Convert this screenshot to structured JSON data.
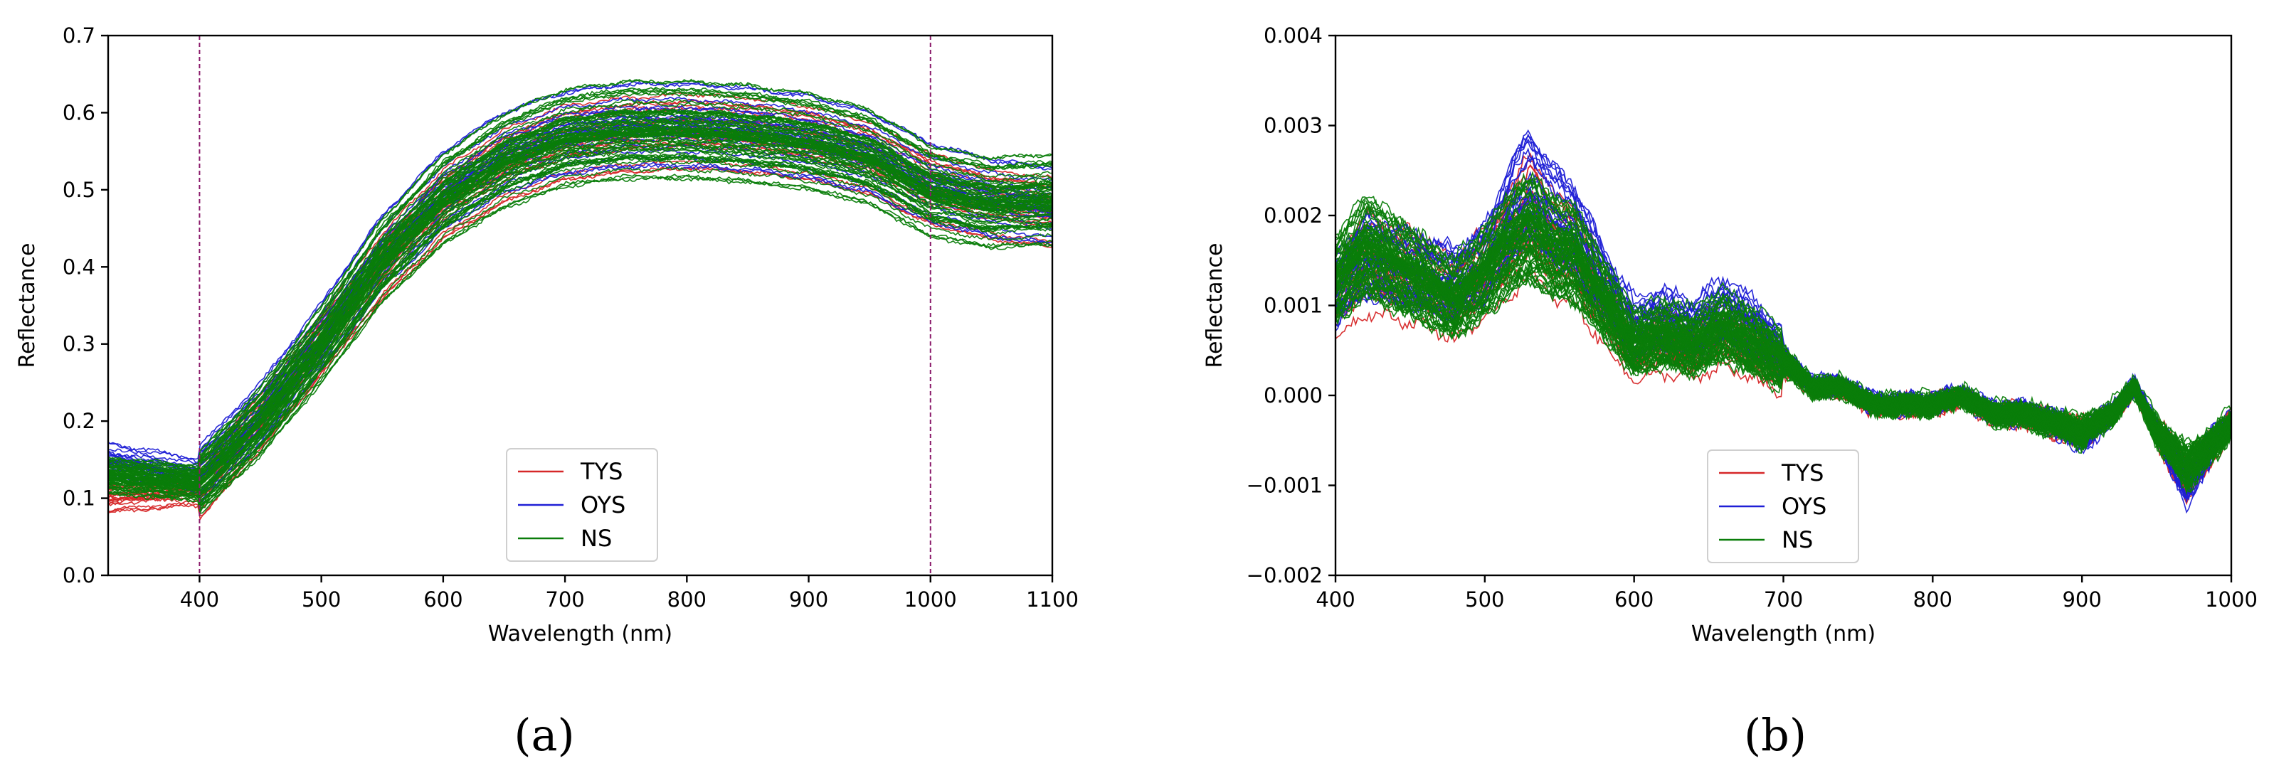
{
  "colors": {
    "TYS": "#d62728",
    "OYS": "#1f1fd6",
    "NS": "#0a7d0a",
    "marker": "#8b1a6b"
  },
  "chart_data": [
    {
      "panel_label": "(a)",
      "type": "line",
      "xlabel": "Wavelength (nm)",
      "ylabel": "Reflectance",
      "xlim": [
        325,
        1100
      ],
      "ylim": [
        0,
        0.7
      ],
      "xticks": [
        "400",
        "500",
        "600",
        "700",
        "800",
        "900",
        "1000",
        "1100"
      ],
      "yticks": [
        "0.0",
        "0.1",
        "0.2",
        "0.3",
        "0.4",
        "0.5",
        "0.6",
        "0.7"
      ],
      "markers": [
        400,
        1000
      ],
      "legend": [
        "TYS",
        "OYS",
        "NS"
      ],
      "legend_position": "lower center",
      "series": [
        {
          "name": "TYS",
          "x": [
            325,
            400,
            450,
            500,
            550,
            600,
            650,
            700,
            750,
            800,
            850,
            900,
            950,
            1000,
            1050,
            1100
          ],
          "values": [
            0.1,
            0.11,
            0.2,
            0.3,
            0.4,
            0.48,
            0.53,
            0.56,
            0.57,
            0.575,
            0.57,
            0.56,
            0.54,
            0.5,
            0.48,
            0.47
          ]
        },
        {
          "name": "OYS",
          "x": [
            325,
            400,
            450,
            500,
            550,
            600,
            650,
            700,
            750,
            800,
            850,
            900,
            950,
            1000,
            1050,
            1100
          ],
          "values": [
            0.15,
            0.13,
            0.21,
            0.31,
            0.42,
            0.5,
            0.55,
            0.575,
            0.585,
            0.585,
            0.58,
            0.57,
            0.55,
            0.51,
            0.49,
            0.48
          ]
        },
        {
          "name": "NS",
          "x": [
            325,
            400,
            450,
            500,
            550,
            600,
            650,
            700,
            750,
            800,
            850,
            900,
            950,
            1000,
            1050,
            1100
          ],
          "values": [
            0.13,
            0.12,
            0.2,
            0.3,
            0.41,
            0.49,
            0.54,
            0.57,
            0.58,
            0.58,
            0.575,
            0.565,
            0.545,
            0.5,
            0.485,
            0.49
          ]
        }
      ]
    },
    {
      "panel_label": "(b)",
      "type": "line",
      "xlabel": "Wavelength (nm)",
      "ylabel": "Reflectance",
      "xlim": [
        400,
        1000
      ],
      "ylim": [
        -0.002,
        0.004
      ],
      "xticks": [
        "400",
        "500",
        "600",
        "700",
        "800",
        "900",
        "1000"
      ],
      "yticks": [
        "−0.002",
        "−0.001",
        "0.000",
        "0.001",
        "0.002",
        "0.003",
        "0.004"
      ],
      "legend": [
        "TYS",
        "OYS",
        "NS"
      ],
      "legend_position": "lower center",
      "series": [
        {
          "name": "TYS",
          "x": [
            400,
            420,
            440,
            460,
            480,
            500,
            520,
            530,
            545,
            560,
            580,
            600,
            620,
            640,
            660,
            680,
            700,
            720,
            740,
            760,
            780,
            800,
            820,
            840,
            860,
            880,
            900,
            920,
            935,
            950,
            970,
            990,
            1000
          ],
          "values": [
            0.0012,
            0.0016,
            0.0015,
            0.0014,
            0.0012,
            0.0015,
            0.0019,
            0.0022,
            0.0018,
            0.0017,
            0.0011,
            0.0006,
            0.0007,
            0.0006,
            0.0008,
            0.0006,
            0.0004,
            0.0001,
            0.0001,
            -0.0001,
            -0.0001,
            -0.0001,
            0.0,
            -0.0002,
            -0.0002,
            -0.0003,
            -0.0004,
            -0.0002,
            0.0001,
            -0.0004,
            -0.0009,
            -0.0005,
            -0.0003
          ]
        },
        {
          "name": "OYS",
          "x": [
            400,
            420,
            440,
            460,
            480,
            500,
            520,
            530,
            545,
            560,
            580,
            600,
            620,
            640,
            660,
            680,
            700,
            720,
            740,
            760,
            780,
            800,
            820,
            840,
            860,
            880,
            900,
            920,
            935,
            950,
            970,
            990,
            1000
          ],
          "values": [
            0.0011,
            0.0015,
            0.0014,
            0.0013,
            0.0012,
            0.0014,
            0.0021,
            0.0023,
            0.002,
            0.0018,
            0.0012,
            0.0007,
            0.0008,
            0.0007,
            0.0009,
            0.0007,
            0.0004,
            0.0001,
            0.0001,
            -0.0001,
            -0.0001,
            -0.0001,
            0.0,
            -0.0002,
            -0.0002,
            -0.0003,
            -0.0005,
            -0.0002,
            0.0001,
            -0.0004,
            -0.001,
            -0.0005,
            -0.0003
          ]
        },
        {
          "name": "NS",
          "x": [
            400,
            420,
            440,
            460,
            480,
            500,
            520,
            530,
            545,
            560,
            580,
            600,
            620,
            640,
            660,
            680,
            700,
            720,
            740,
            760,
            780,
            800,
            820,
            840,
            860,
            880,
            900,
            920,
            935,
            950,
            970,
            990,
            1000
          ],
          "values": [
            0.0013,
            0.0017,
            0.0015,
            0.0013,
            0.0011,
            0.0014,
            0.0018,
            0.0019,
            0.0017,
            0.0016,
            0.0011,
            0.0006,
            0.0007,
            0.0006,
            0.0008,
            0.0006,
            0.0004,
            0.0001,
            0.0001,
            -0.0001,
            -0.0001,
            -0.0001,
            0.0,
            -0.0002,
            -0.0002,
            -0.0003,
            -0.0004,
            -0.0002,
            0.0001,
            -0.0004,
            -0.0008,
            -0.0005,
            -0.0003
          ]
        }
      ]
    }
  ]
}
